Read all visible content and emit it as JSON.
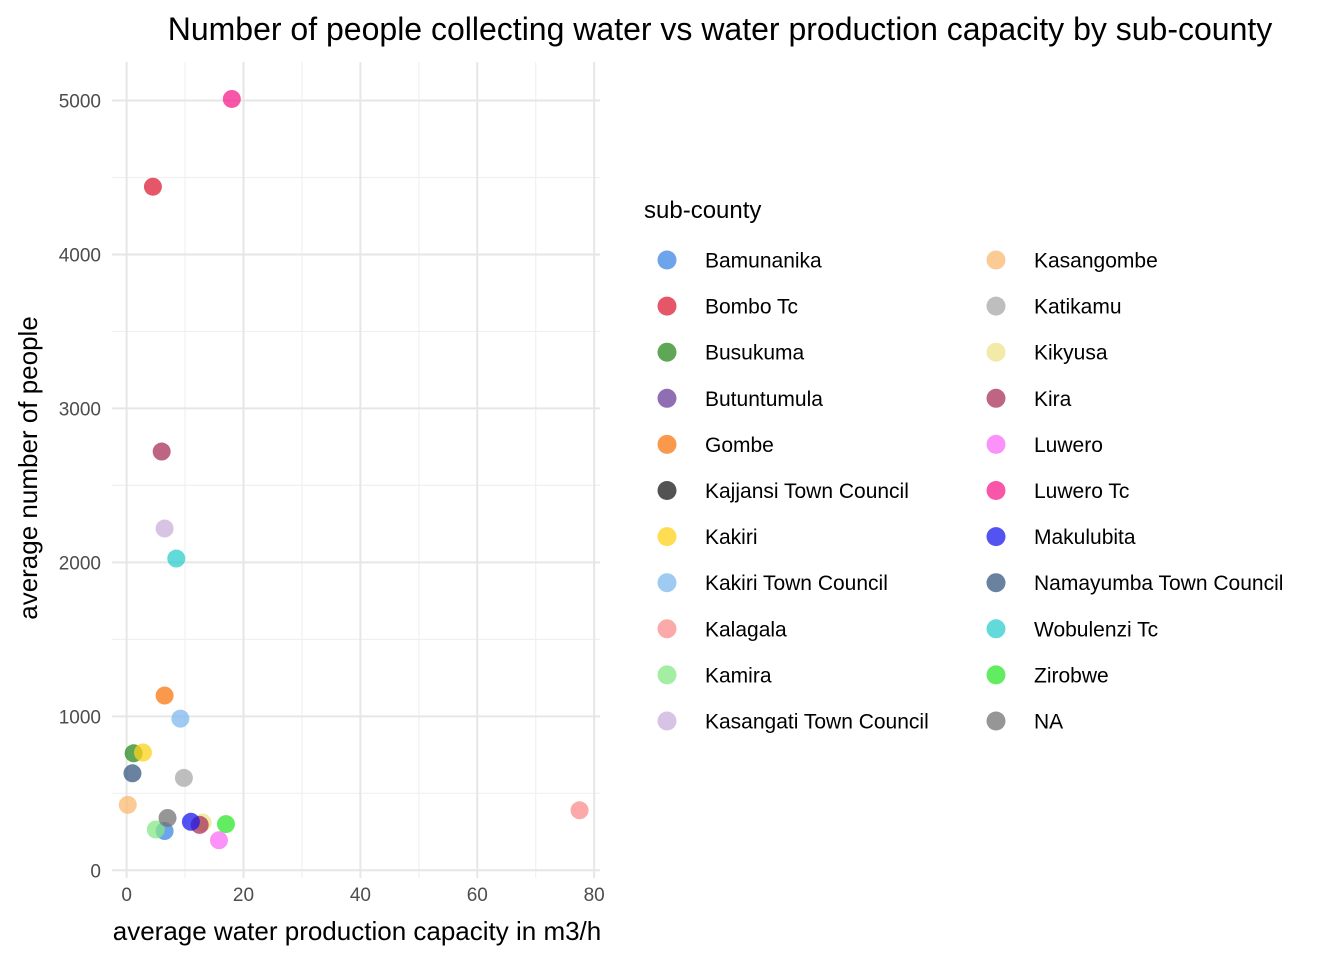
{
  "chart_data": {
    "type": "scatter",
    "title": "Number of people collecting water vs water production capacity by sub-county",
    "xlabel": "average water production capacity in m3/h",
    "ylabel": "average number of people",
    "xlim": [
      -2.5,
      81
    ],
    "ylim": [
      -50,
      5250
    ],
    "x_ticks": [
      0,
      20,
      40,
      60,
      80
    ],
    "y_ticks": [
      0,
      1000,
      2000,
      3000,
      4000,
      5000
    ],
    "grid": true,
    "legend_title": "sub-county",
    "legend_position": "right",
    "series": [
      {
        "name": "Bamunanika",
        "color": "#3d85e6",
        "points": [
          [
            6.5,
            255
          ]
        ]
      },
      {
        "name": "Bombo Tc",
        "color": "#dc1f35",
        "points": [
          [
            4.5,
            4440
          ]
        ]
      },
      {
        "name": "Busukuma",
        "color": "#2a8a1e",
        "points": [
          [
            1.2,
            760
          ]
        ]
      },
      {
        "name": "Butuntumula",
        "color": "#6a3d9a",
        "points": []
      },
      {
        "name": "Gombe",
        "color": "#f8760f",
        "points": [
          [
            6.5,
            1135
          ]
        ]
      },
      {
        "name": "Kajjansi Town Council",
        "color": "#1a1a1a",
        "points": []
      },
      {
        "name": "Kakiri",
        "color": "#ffd21a",
        "points": [
          [
            2.8,
            765
          ]
        ]
      },
      {
        "name": "Kakiri Town Council",
        "color": "#7fb8ee",
        "points": [
          [
            9.2,
            985
          ]
        ]
      },
      {
        "name": "Kalagala",
        "color": "#fb8c8c",
        "points": [
          [
            77.5,
            390
          ]
        ]
      },
      {
        "name": "Kamira",
        "color": "#86e886",
        "points": [
          [
            5.0,
            265
          ]
        ]
      },
      {
        "name": "Kasangati Town Council",
        "color": "#c9b0dc",
        "points": [
          [
            6.5,
            2220
          ]
        ]
      },
      {
        "name": "Kasangombe",
        "color": "#fbb870",
        "points": [
          [
            0.2,
            425
          ]
        ]
      },
      {
        "name": "Katikamu",
        "color": "#a8a8a8",
        "points": [
          [
            9.8,
            600
          ]
        ]
      },
      {
        "name": "Kikyusa",
        "color": "#ede38c",
        "points": [
          [
            13.0,
            310
          ]
        ]
      },
      {
        "name": "Kira",
        "color": "#a8325a",
        "points": [
          [
            6.0,
            2720
          ],
          [
            12.5,
            295
          ]
        ]
      },
      {
        "name": "Luwero",
        "color": "#f86ef8",
        "points": [
          [
            15.8,
            195
          ]
        ]
      },
      {
        "name": "Luwero Tc",
        "color": "#f41e8c",
        "points": [
          [
            18.0,
            5010
          ]
        ]
      },
      {
        "name": "Makulubita",
        "color": "#1a1aee",
        "points": [
          [
            11.0,
            315
          ]
        ]
      },
      {
        "name": "Namayumba Town Council",
        "color": "#355880",
        "points": [
          [
            1.0,
            630
          ]
        ]
      },
      {
        "name": "Wobulenzi Tc",
        "color": "#2ecece",
        "points": [
          [
            8.5,
            2025
          ]
        ]
      },
      {
        "name": "Zirobwe",
        "color": "#2ee62e",
        "points": [
          [
            17.0,
            300
          ]
        ]
      },
      {
        "name": "NA",
        "color": "#737373",
        "points": [
          [
            7.0,
            340
          ]
        ]
      }
    ]
  }
}
